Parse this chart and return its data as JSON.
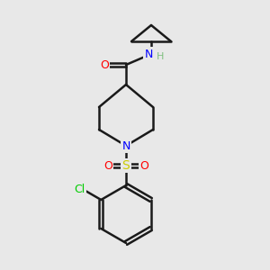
{
  "background_color": "#e8e8e8",
  "bond_color": "#1a1a1a",
  "atom_colors": {
    "O": "#ff0000",
    "N_amide": "#0000ff",
    "N_pip": "#0000ff",
    "S": "#cccc00",
    "Cl": "#00cc00",
    "H": "#7fbf7f",
    "C": "#1a1a1a"
  },
  "figsize": [
    3.0,
    3.0
  ],
  "dpi": 100
}
